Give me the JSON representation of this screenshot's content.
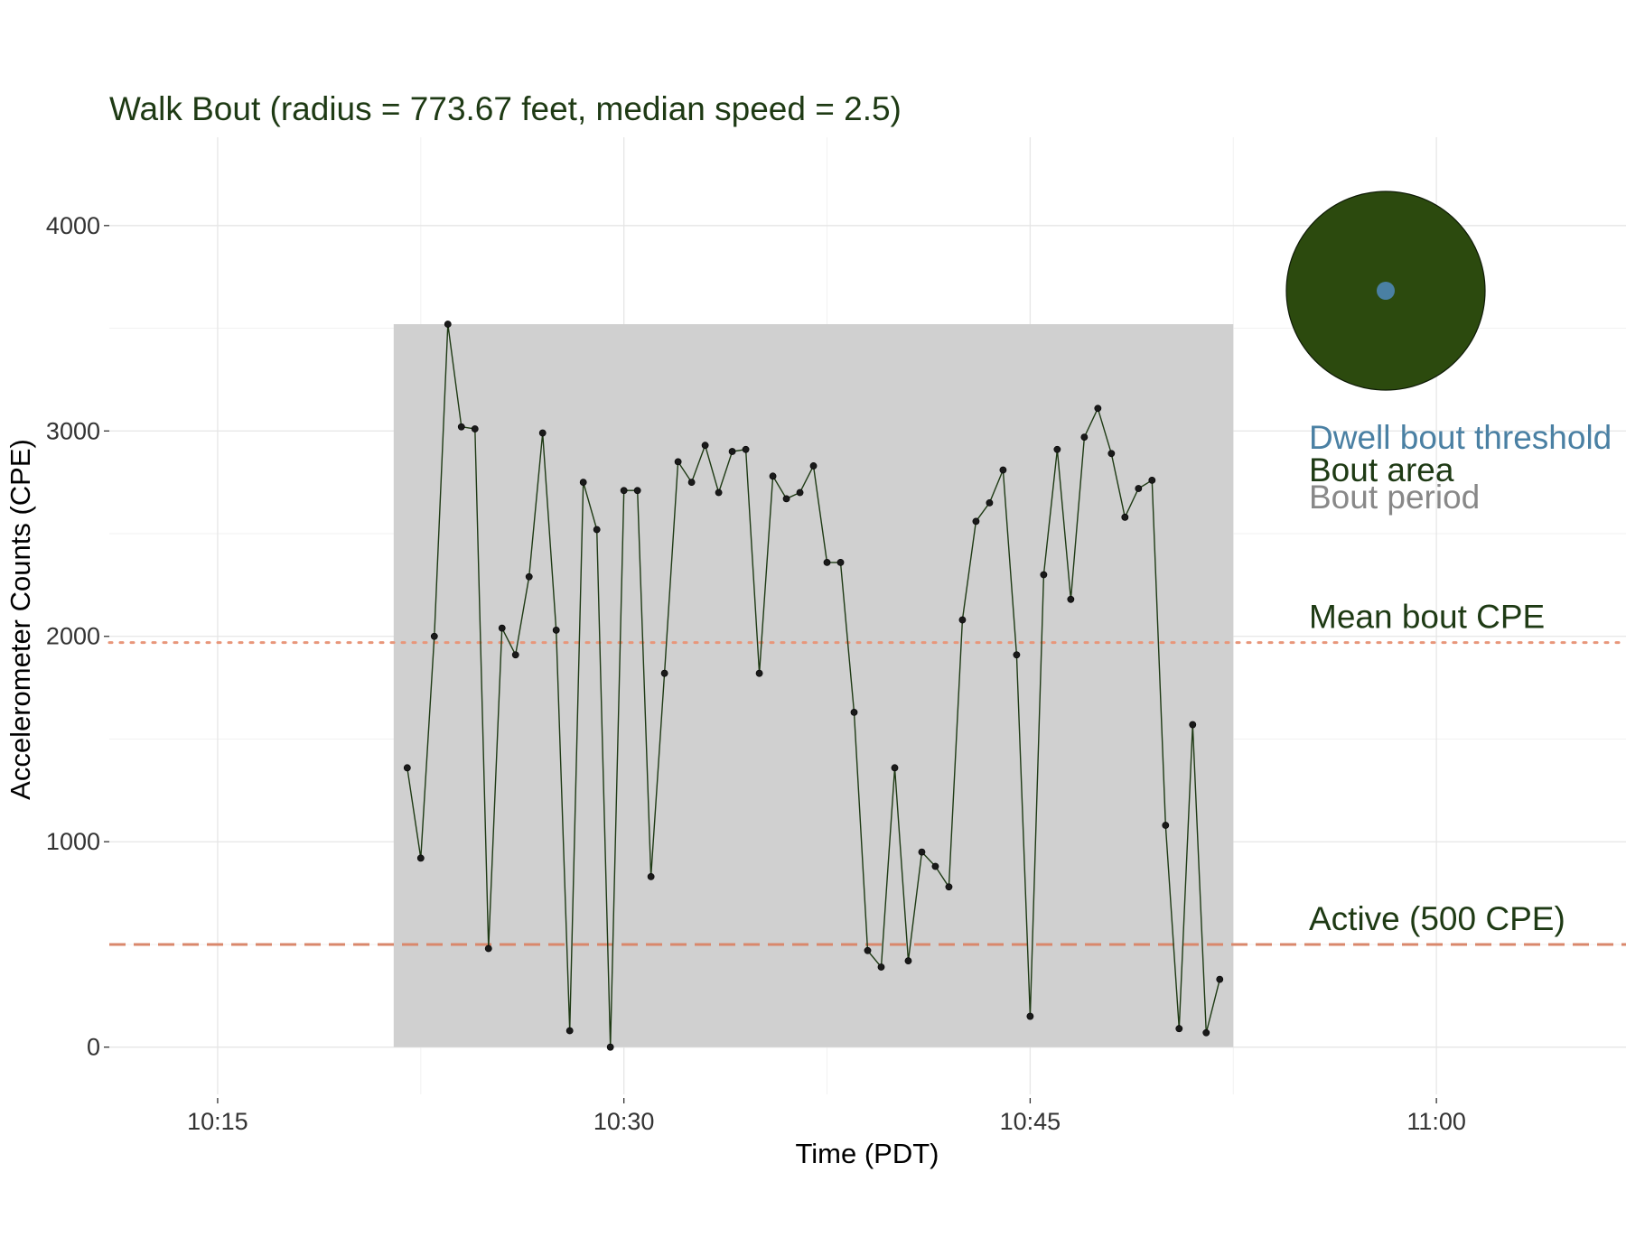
{
  "chart_data": {
    "type": "line",
    "title": "Walk Bout (radius = 773.67 feet, median speed = 2.5)",
    "xlabel": "Time (PDT)",
    "ylabel": "Accelerometer Counts (CPE)",
    "x_unit": "time of day (PDT)",
    "xlim": [
      "10:11",
      "11:07"
    ],
    "ylim": [
      -230,
      4430
    ],
    "x_ticks": [
      "10:15",
      "10:30",
      "10:45",
      "11:00"
    ],
    "y_ticks": [
      0,
      1000,
      2000,
      3000,
      4000
    ],
    "grid": true,
    "bout_period": {
      "start": "10:21:30",
      "end": "10:52:30",
      "top": 3520
    },
    "reference_lines": [
      {
        "label": "Mean bout CPE",
        "value": 1970,
        "style": "dotted",
        "color": "#e8967a"
      },
      {
        "label": "Active (500 CPE)",
        "value": 500,
        "style": "dashed",
        "color": "#d9876b"
      }
    ],
    "radius_glyph": {
      "outer_color": "#2c4a0e",
      "inner_color": "#4a80a3"
    },
    "legend": [
      {
        "text": "Dwell bout threshold",
        "color": "#4a80a3"
      },
      {
        "text": "Bout area",
        "color": "#1e3a14"
      },
      {
        "text": "Bout period",
        "color": "#888888"
      }
    ],
    "legend_position": "right",
    "line_color": "#1e3a14",
    "series": [
      {
        "x": [
          "10:22:00",
          "10:22:30",
          "10:23:00",
          "10:23:30",
          "10:24:00",
          "10:24:30",
          "10:25:00",
          "10:25:30",
          "10:26:00",
          "10:26:30",
          "10:27:00",
          "10:27:30",
          "10:28:00",
          "10:28:30",
          "10:29:00",
          "10:29:30",
          "10:30:00",
          "10:30:30",
          "10:31:00",
          "10:31:30",
          "10:32:00",
          "10:32:30",
          "10:33:00",
          "10:33:30",
          "10:34:00",
          "10:34:30",
          "10:35:00",
          "10:35:30",
          "10:36:00",
          "10:36:30",
          "10:37:00",
          "10:37:30",
          "10:38:00",
          "10:38:30",
          "10:39:00",
          "10:39:30",
          "10:40:00",
          "10:40:30",
          "10:41:00",
          "10:41:30",
          "10:42:00",
          "10:42:30",
          "10:43:00",
          "10:43:30",
          "10:44:00",
          "10:44:30",
          "10:45:00",
          "10:45:30",
          "10:46:00",
          "10:46:30",
          "10:47:00",
          "10:47:30",
          "10:48:00",
          "10:48:30",
          "10:49:00",
          "10:49:30",
          "10:50:00",
          "10:50:30",
          "10:51:00",
          "10:51:30",
          "10:52:00"
        ],
        "values": [
          1360,
          920,
          2000,
          3520,
          3020,
          3010,
          480,
          2040,
          1910,
          2290,
          2990,
          2030,
          80,
          2750,
          2520,
          0,
          2710,
          2710,
          830,
          1820,
          2850,
          2750,
          2930,
          2700,
          2900,
          2910,
          1820,
          2780,
          2670,
          2700,
          2830,
          2360,
          2360,
          1630,
          470,
          390,
          1360,
          420,
          950,
          880,
          780,
          2080,
          2560,
          2650,
          2810,
          1910,
          150,
          2300,
          2910,
          2180,
          2970,
          3110,
          2890,
          2580,
          2720,
          2760,
          1080,
          90,
          1570,
          70,
          330
        ]
      }
    ]
  }
}
